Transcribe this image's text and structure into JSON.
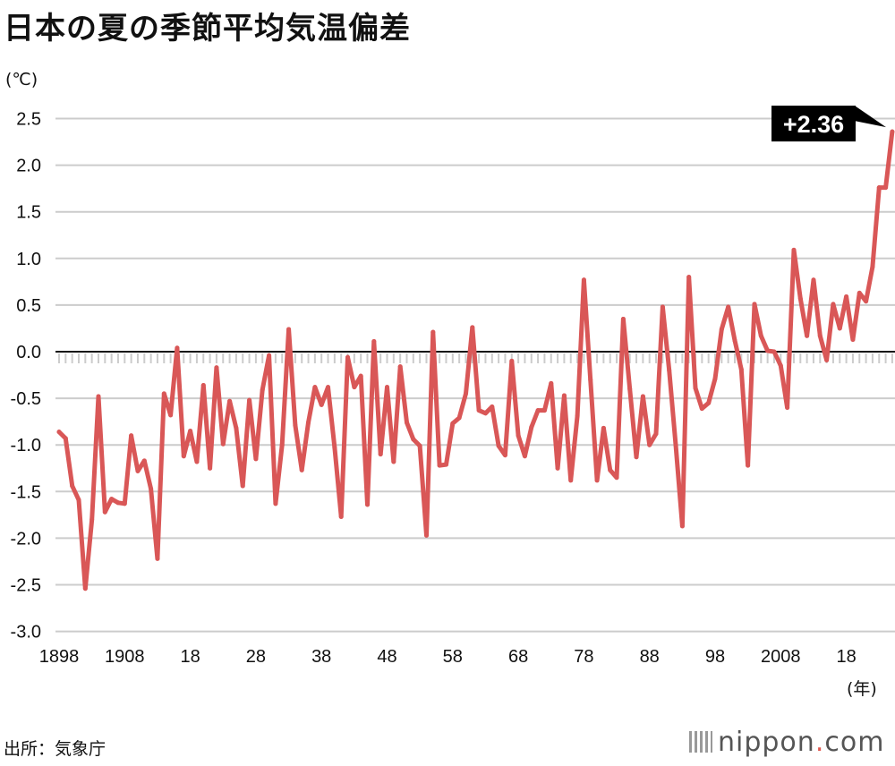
{
  "title": "日本の夏の季節平均気温偏差",
  "source": "出所：気象庁",
  "logo": {
    "name": "nippon",
    "dot": ".",
    "tld": "com"
  },
  "chart_data": {
    "type": "line",
    "title": "日本の夏の季節平均気温偏差",
    "ylabel": "(℃)",
    "xlabel": "(年)",
    "ylim": [
      -3.0,
      2.5
    ],
    "xlim": [
      1898,
      2025
    ],
    "yticks": [
      "2.5",
      "2.0",
      "1.5",
      "1.0",
      "0.5",
      "0.0",
      "-0.5",
      "-1.0",
      "-1.5",
      "-2.0",
      "-2.5",
      "-3.0"
    ],
    "xticks": [
      {
        "year": 1898,
        "label": "1898"
      },
      {
        "year": 1908,
        "label": "1908"
      },
      {
        "year": 1918,
        "label": "18"
      },
      {
        "year": 1928,
        "label": "28"
      },
      {
        "year": 1938,
        "label": "38"
      },
      {
        "year": 1948,
        "label": "48"
      },
      {
        "year": 1958,
        "label": "58"
      },
      {
        "year": 1968,
        "label": "68"
      },
      {
        "year": 1978,
        "label": "78"
      },
      {
        "year": 1988,
        "label": "88"
      },
      {
        "year": 1998,
        "label": "98"
      },
      {
        "year": 2008,
        "label": "2008"
      },
      {
        "year": 2018,
        "label": "18"
      }
    ],
    "grid": true,
    "line_color": "#d95757",
    "annotation": {
      "year": 2025,
      "value": 2.36,
      "label": "+2.36"
    },
    "start_year": 1898,
    "values": [
      -0.86,
      -0.93,
      -1.44,
      -1.59,
      -2.54,
      -1.8,
      -0.48,
      -1.72,
      -1.58,
      -1.62,
      -1.63,
      -0.9,
      -1.28,
      -1.17,
      -1.47,
      -2.22,
      -0.45,
      -0.68,
      0.04,
      -1.12,
      -0.85,
      -1.18,
      -0.36,
      -1.25,
      -0.17,
      -0.99,
      -0.53,
      -0.82,
      -1.44,
      -0.52,
      -1.15,
      -0.41,
      -0.04,
      -1.63,
      -1.0,
      0.24,
      -0.79,
      -1.27,
      -0.76,
      -0.38,
      -0.57,
      -0.38,
      -1.03,
      -1.77,
      -0.06,
      -0.38,
      -0.26,
      -1.64,
      0.11,
      -1.1,
      -0.38,
      -1.18,
      -0.16,
      -0.76,
      -0.94,
      -1.01,
      -1.97,
      0.21,
      -1.22,
      -1.21,
      -0.77,
      -0.71,
      -0.45,
      0.26,
      -0.63,
      -0.66,
      -0.59,
      -1.01,
      -1.11,
      -0.1,
      -0.9,
      -1.12,
      -0.81,
      -0.63,
      -0.63,
      -0.34,
      -1.25,
      -0.47,
      -1.38,
      -0.69,
      0.77,
      -0.3,
      -1.38,
      -0.82,
      -1.27,
      -1.35,
      0.35,
      -0.4,
      -1.13,
      -0.48,
      -1.0,
      -0.88,
      0.48,
      -0.2,
      -1.0,
      -1.87,
      0.8,
      -0.39,
      -0.61,
      -0.55,
      -0.29,
      0.24,
      0.48,
      0.12,
      -0.19,
      -1.22,
      0.51,
      0.17,
      0.01,
      0.0,
      -0.15,
      -0.6,
      1.09,
      0.57,
      0.17,
      0.77,
      0.17,
      -0.09,
      0.51,
      0.25,
      0.59,
      0.13,
      0.63,
      0.54,
      0.91,
      1.76,
      1.76,
      2.36
    ]
  }
}
